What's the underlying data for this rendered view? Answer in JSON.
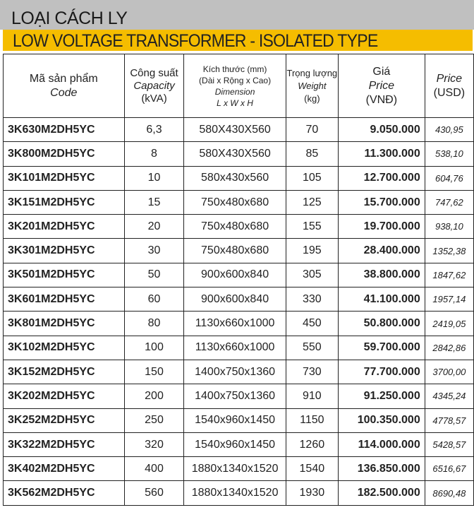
{
  "title": "LOẠI CÁCH LY",
  "subtitle": "LOW VOLTAGE TRANSFORMER - ISOLATED TYPE",
  "colors": {
    "header_gray": "#c0c0c0",
    "accent_yellow": "#f5bd00"
  },
  "headers": {
    "code": {
      "vi": "Mã sản phẩm",
      "en": "Code"
    },
    "capacity": {
      "vi": "Công suất",
      "en": "Capacity",
      "unit": "(kVA)"
    },
    "dimension": {
      "vi": "Kích thước (mm)",
      "vi2": "(Dài x Rộng x Cao)",
      "en": "Dimension",
      "en2": "L x W x H"
    },
    "weight": {
      "vi": "Trọng lượng",
      "en": "Weight",
      "unit": "(kg)"
    },
    "price_vnd": {
      "vi": "Giá",
      "en": "Price",
      "unit": "(VNĐ)"
    },
    "price_usd": {
      "en": "Price",
      "unit": "(USD)"
    }
  },
  "rows": [
    [
      "3K630M2DH5YC",
      "6,3",
      "580X430X560",
      "70",
      "9.050.000",
      "430,95"
    ],
    [
      "3K800M2DH5YC",
      "8",
      "580X430X560",
      "85",
      "11.300.000",
      "538,10"
    ],
    [
      "3K101M2DH5YC",
      "10",
      "580x430x560",
      "105",
      "12.700.000",
      "604,76"
    ],
    [
      "3K151M2DH5YC",
      "15",
      "750x480x680",
      "125",
      "15.700.000",
      "747,62"
    ],
    [
      "3K201M2DH5YC",
      "20",
      "750x480x680",
      "155",
      "19.700.000",
      "938,10"
    ],
    [
      "3K301M2DH5YC",
      "30",
      "750x480x680",
      "195",
      "28.400.000",
      "1352,38"
    ],
    [
      "3K501M2DH5YC",
      "50",
      "900x600x840",
      "305",
      "38.800.000",
      "1847,62"
    ],
    [
      "3K601M2DH5YC",
      "60",
      "900x600x840",
      "330",
      "41.100.000",
      "1957,14"
    ],
    [
      "3K801M2DH5YC",
      "80",
      "1130x660x1000",
      "450",
      "50.800.000",
      "2419,05"
    ],
    [
      "3K102M2DH5YC",
      "100",
      "1130x660x1000",
      "550",
      "59.700.000",
      "2842,86"
    ],
    [
      "3K152M2DH5YC",
      "150",
      "1400x750x1360",
      "730",
      "77.700.000",
      "3700,00"
    ],
    [
      "3K202M2DH5YC",
      "200",
      "1400x750x1360",
      "910",
      "91.250.000",
      "4345,24"
    ],
    [
      "3K252M2DH5YC",
      "250",
      "1540x960x1450",
      "1150",
      "100.350.000",
      "4778,57"
    ],
    [
      "3K322M2DH5YC",
      "320",
      "1540x960x1450",
      "1260",
      "114.000.000",
      "5428,57"
    ],
    [
      "3K402M2DH5YC",
      "400",
      "1880x1340x1520",
      "1540",
      "136.850.000",
      "6516,67"
    ],
    [
      "3K562M2DH5YC",
      "560",
      "1880x1340x1520",
      "1930",
      "182.500.000",
      "8690,48"
    ]
  ]
}
